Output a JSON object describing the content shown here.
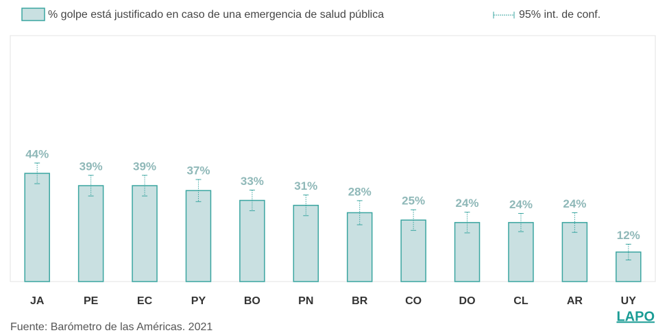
{
  "chart_data": {
    "type": "bar",
    "legend": {
      "series": "% golpe está justificado en caso de una emergencia de salud pública",
      "error": "95% int. de conf."
    },
    "categories": [
      "JA",
      "PE",
      "EC",
      "PY",
      "BO",
      "PN",
      "BR",
      "CO",
      "DO",
      "CL",
      "AR",
      "UY"
    ],
    "values": [
      44,
      39,
      39,
      37,
      33,
      31,
      28,
      25,
      24,
      24,
      24,
      12
    ],
    "value_labels": [
      "44%",
      "39%",
      "39%",
      "37%",
      "33%",
      "31%",
      "28%",
      "25%",
      "24%",
      "24%",
      "24%",
      "12%"
    ],
    "errors": [
      4.2,
      4.2,
      4.2,
      4.5,
      4.2,
      4.2,
      4.9,
      4.2,
      4.2,
      3.7,
      4,
      3.2
    ],
    "color": "#c9e0e1",
    "edge_color": "#3aa5a0",
    "label_color": "#8fb8b8",
    "ylim": [
      0,
      100
    ],
    "source": "Fuente: Barómetro de las Américas. 2021",
    "logo": "LAPO"
  }
}
